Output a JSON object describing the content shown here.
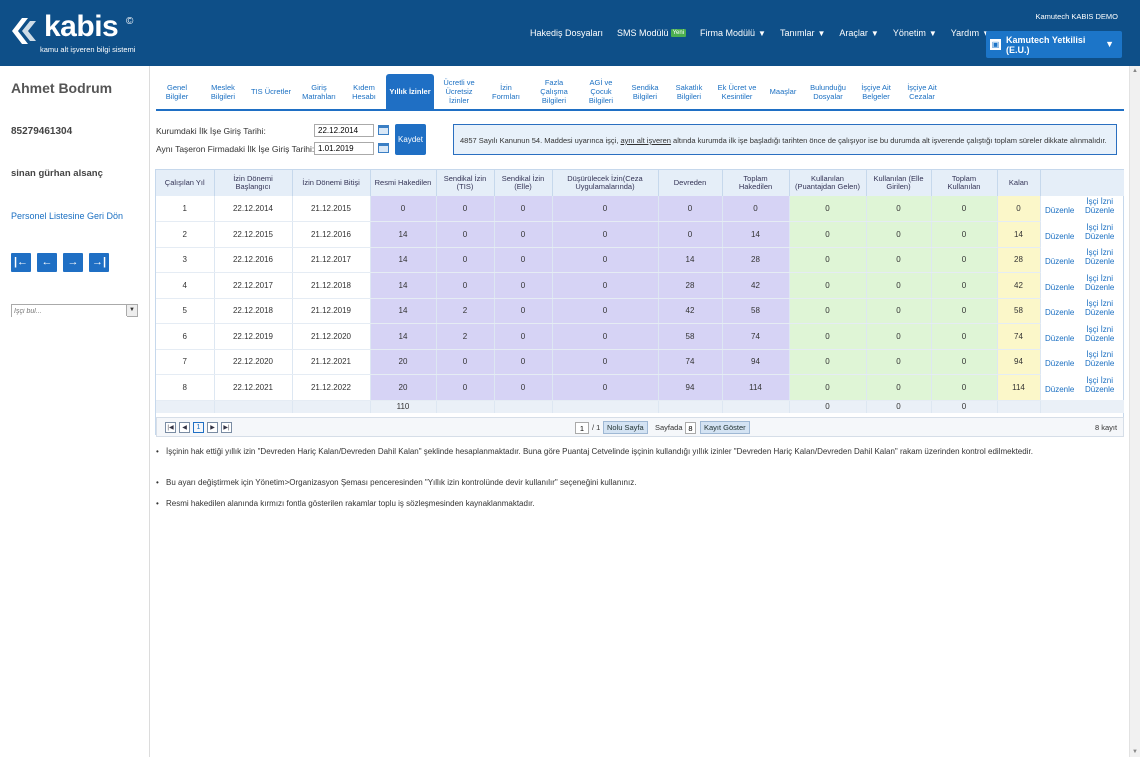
{
  "header": {
    "brand": "kabis",
    "copyright": "©",
    "tagline": "kamu alt işveren bilgi sistemi",
    "company_top": "Kamutech KABIS DEMO",
    "nav": [
      {
        "label": "Hakediş Dosyaları",
        "caret": false,
        "badge": ""
      },
      {
        "label": "SMS Modülü",
        "caret": false,
        "badge": "Yeni"
      },
      {
        "label": "Firma Modülü",
        "caret": true,
        "badge": ""
      },
      {
        "label": "Tanımlar",
        "caret": true,
        "badge": ""
      },
      {
        "label": "Araçlar",
        "caret": true,
        "badge": ""
      },
      {
        "label": "Yönetim",
        "caret": true,
        "badge": ""
      },
      {
        "label": "Yardım",
        "caret": true,
        "badge": ""
      }
    ],
    "user_line1": "Kamutech Yetkilisi",
    "user_line2": "(E.U.)"
  },
  "sidebar": {
    "name": "Ahmet Bodrum",
    "tc": "85279461304",
    "company": "sinan gürhan alsanç",
    "back_link": "Personel Listesine Geri Dön",
    "pager_buttons": [
      "|←",
      "←",
      "→",
      "→|"
    ],
    "search_placeholder": "İşçi bul..."
  },
  "tabs": [
    {
      "label": "Genel\nBilgiler",
      "active": false
    },
    {
      "label": "Meslek\nBilgileri",
      "active": false
    },
    {
      "label": "TIS Ücretler",
      "active": false
    },
    {
      "label": "Giriş\nMatrahları",
      "active": false
    },
    {
      "label": "Kıdem\nHesabı",
      "active": false
    },
    {
      "label": "Yıllık İzinler",
      "active": true
    },
    {
      "label": "Ücretli ve\nÜcretsiz\nİzinler",
      "active": false
    },
    {
      "label": "İzin\nFormları",
      "active": false
    },
    {
      "label": "Fazla\nÇalışma\nBilgileri",
      "active": false
    },
    {
      "label": "AGİ ve\nÇocuk\nBilgileri",
      "active": false
    },
    {
      "label": "Sendika\nBilgileri",
      "active": false
    },
    {
      "label": "Sakatlık\nBilgileri",
      "active": false
    },
    {
      "label": "Ek Ücret ve\nKesintiler",
      "active": false
    },
    {
      "label": "Maaşlar",
      "active": false
    },
    {
      "label": "Bulunduğu\nDosyalar",
      "active": false
    },
    {
      "label": "İşçiye Ait\nBelgeler",
      "active": false
    },
    {
      "label": "İşçiye Ait\nCezalar",
      "active": false
    }
  ],
  "form": {
    "label1": "Kurumdaki İlk İşe Giriş Tarihi:",
    "value1": "22.12.2014",
    "label2": "Aynı Taşeron Firmadaki İlk İşe Giriş Tarihi:",
    "value2": "1.01.2019",
    "save": "Kaydet",
    "info_pre": "4857 Sayılı Kanunun 54. Maddesi uyarınca işçi, ",
    "info_link": "aynı alt işveren",
    "info_post": " altında kurumda ilk işe başladığı tarihten önce de çalışıyor ise bu durumda alt işverende çalıştığı toplam süreler dikkate alınmalıdır."
  },
  "table": {
    "headers": [
      "Çalışılan Yıl",
      "İzin Dönemi\nBaşlangıcı",
      "İzin Dönemi Bitişi",
      "Resmi Hakedilen",
      "Sendikal İzin\n(TIS)",
      "Sendikal İzin\n(Elle)",
      "Düşürülecek İzin(Ceza\nUygulamalarında)",
      "Devreden",
      "Toplam\nHakedilen",
      "Kullanılan\n(Puantajdan Gelen)",
      "Kullanılan (Elle\nGirilen)",
      "Toplam\nKullanılan",
      "Kalan"
    ],
    "rows": [
      [
        "1",
        "22.12.2014",
        "21.12.2015",
        "0",
        "0",
        "0",
        "0",
        "0",
        "0",
        "0",
        "0",
        "0",
        "0"
      ],
      [
        "2",
        "22.12.2015",
        "21.12.2016",
        "14",
        "0",
        "0",
        "0",
        "0",
        "14",
        "0",
        "0",
        "0",
        "14"
      ],
      [
        "3",
        "22.12.2016",
        "21.12.2017",
        "14",
        "0",
        "0",
        "0",
        "14",
        "28",
        "0",
        "0",
        "0",
        "28"
      ],
      [
        "4",
        "22.12.2017",
        "21.12.2018",
        "14",
        "0",
        "0",
        "0",
        "28",
        "42",
        "0",
        "0",
        "0",
        "42"
      ],
      [
        "5",
        "22.12.2018",
        "21.12.2019",
        "14",
        "2",
        "0",
        "0",
        "42",
        "58",
        "0",
        "0",
        "0",
        "58"
      ],
      [
        "6",
        "22.12.2019",
        "21.12.2020",
        "14",
        "2",
        "0",
        "0",
        "58",
        "74",
        "0",
        "0",
        "0",
        "74"
      ],
      [
        "7",
        "22.12.2020",
        "21.12.2021",
        "20",
        "0",
        "0",
        "0",
        "74",
        "94",
        "0",
        "0",
        "0",
        "94"
      ],
      [
        "8",
        "22.12.2021",
        "21.12.2022",
        "20",
        "0",
        "0",
        "0",
        "94",
        "114",
        "0",
        "0",
        "0",
        "114"
      ]
    ],
    "footer": [
      "",
      "",
      "",
      "110",
      "",
      "",
      "",
      "",
      "",
      "0",
      "0",
      "0",
      ""
    ],
    "edit_label": "Düzenle",
    "izin_label1": "İşçi İzni",
    "izin_label2": "Düzenle"
  },
  "pager": {
    "first": "|◀",
    "prev": "◀",
    "current": "1",
    "next": "▶",
    "last": "▶|",
    "page_value": "1",
    "page_total": "/ 1",
    "no_page": "Nolu Sayfa",
    "per_page_label": "Sayfada",
    "per_page_value": "8",
    "show": "Kayıt Göster",
    "count": "8 kayıt"
  },
  "notes": [
    "İşçinin hak ettiği yıllık izin \"Devreden Hariç Kalan/Devreden Dahil Kalan\" şeklinde hesaplanmaktadır. Buna göre Puantaj Cetvelinde işçinin kullandığı yıllık izinler \"Devreden Hariç Kalan/Devreden Dahil Kalan\" rakam üzerinden kontrol edilmektedir.",
    "Bu ayarı değiştirmek için Yönetim>Organizasyon Şeması penceresinden \"Yıllık izin kontrolünde devir kullanılır\" seçeneğini kullanınız.",
    "Resmi hakedilen alanında kırmızı fontla gösterilen rakamlar toplu iş sözleşmesinden kaynaklanmaktadır."
  ],
  "colors": {
    "header_bg": "#0e4f88",
    "accent": "#1f6fc4",
    "purple_cell": "#d6d3f5",
    "green_cell": "#dff5d6",
    "yellow_cell": "#fbf7c9"
  }
}
